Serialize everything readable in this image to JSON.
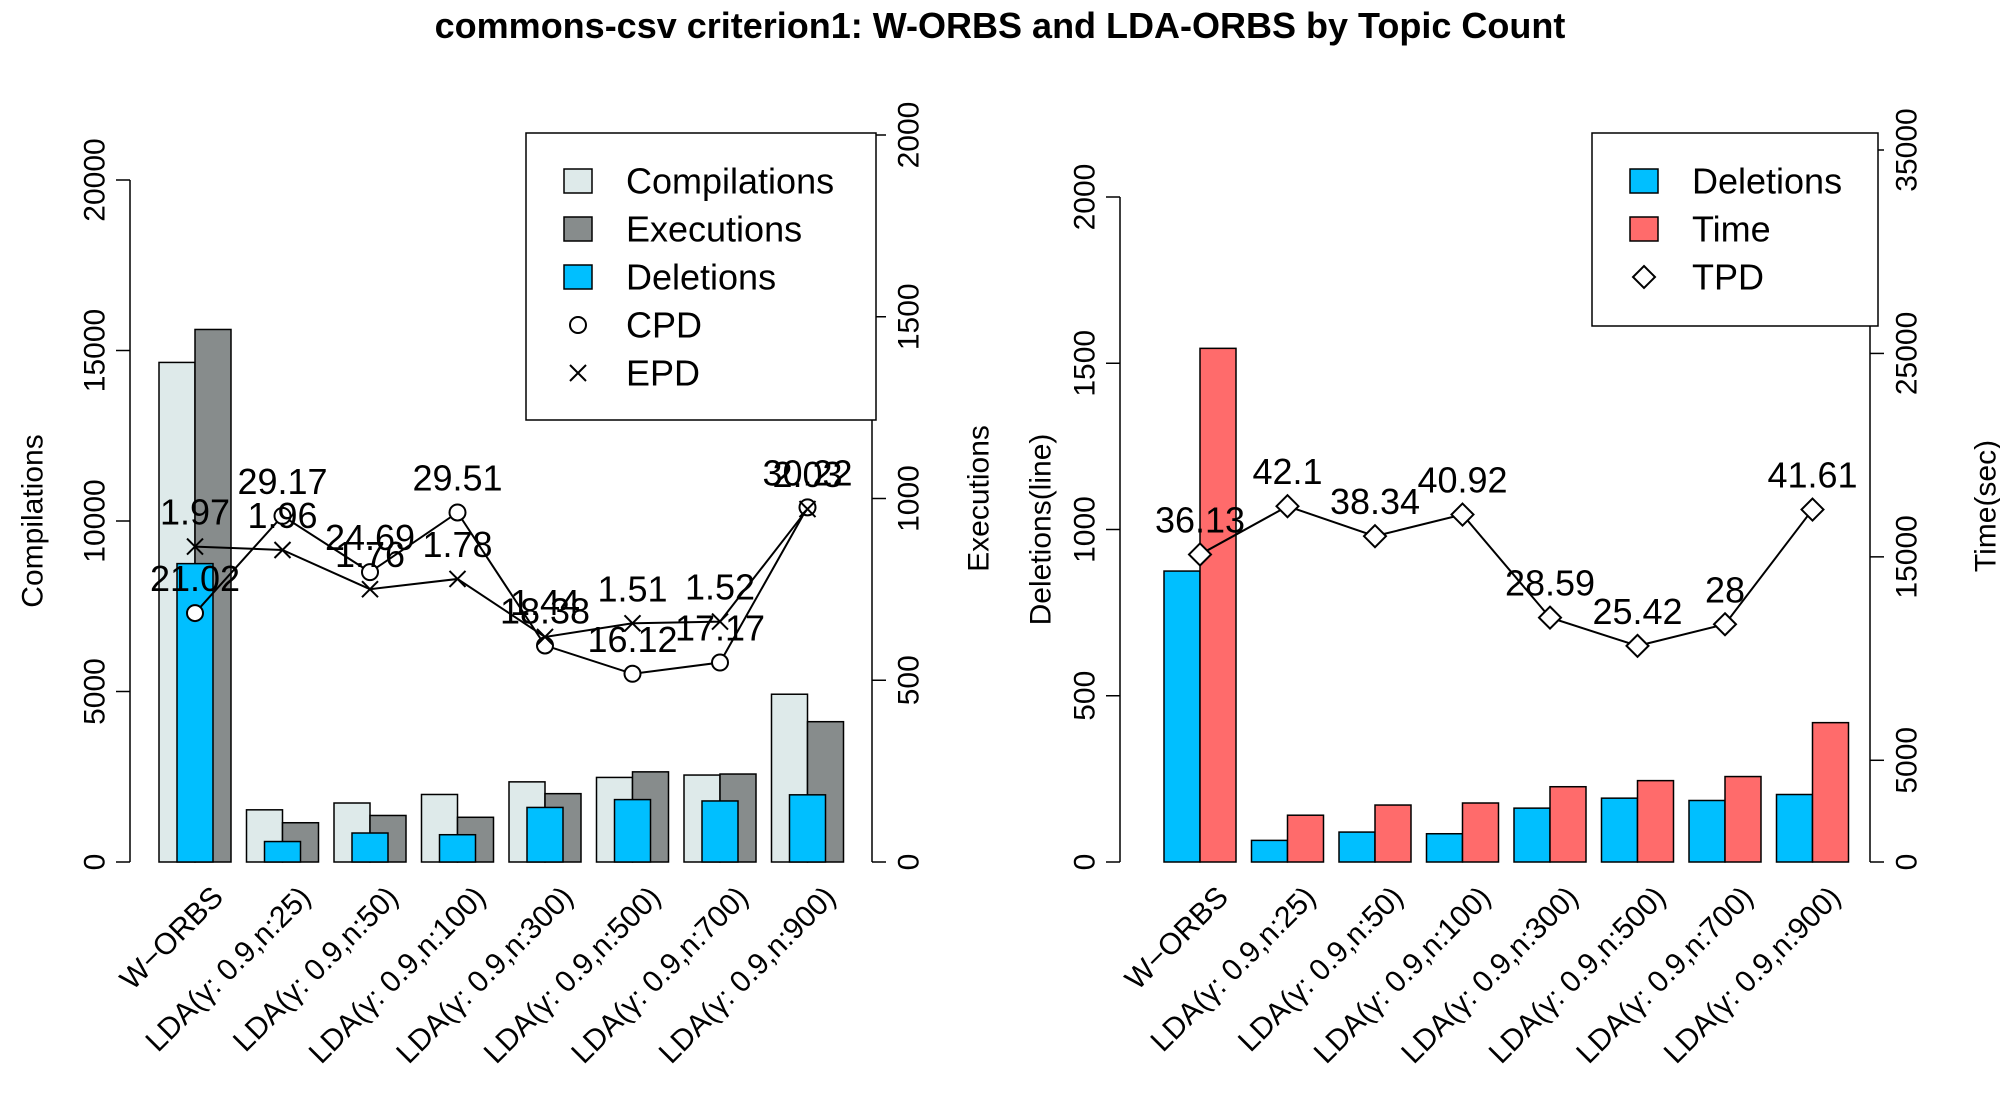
{
  "title": "commons-csv criterion1: W-ORBS and LDA-ORBS by Topic Count",
  "colors": {
    "compilations": "#deeaea",
    "executions": "#878c8c",
    "deletions": "#00bfff",
    "time": "#ff6b6b",
    "stroke": "#000000"
  },
  "chart_data": [
    {
      "type": "bar",
      "panel": "left",
      "categories": [
        "W−ORBS",
        "LDA(γ: 0.9,n:25)",
        "LDA(γ: 0.9,n:50)",
        "LDA(γ: 0.9,n:100)",
        "LDA(γ: 0.9,n:300)",
        "LDA(γ: 0.9,n:500)",
        "LDA(γ: 0.9,n:700)",
        "LDA(γ: 0.9,n:900)"
      ],
      "ylabel": "Compilations",
      "ylim": [
        0,
        20000
      ],
      "yticks": [
        0,
        5000,
        10000,
        15000,
        20000
      ],
      "y2label": "Executions",
      "y2lim": [
        0,
        2000
      ],
      "y2ticks": [
        0,
        500,
        1000,
        1500,
        2000
      ],
      "series": [
        {
          "name": "Compilations",
          "axis": "left",
          "values": [
            14650,
            1530,
            1730,
            1980,
            2350,
            2480,
            2550,
            4920
          ]
        },
        {
          "name": "Executions",
          "axis": "right",
          "values": [
            1465,
            108,
            128,
            123,
            188,
            248,
            242,
            386
          ]
        },
        {
          "name": "Deletions",
          "axis": "left",
          "values": [
            8750,
            600,
            850,
            800,
            1600,
            1830,
            1790,
            1970
          ]
        }
      ],
      "lines": [
        {
          "name": "CPD",
          "axis": "left",
          "marker": "circle",
          "values": [
            7300,
            10150,
            8500,
            10250,
            6350,
            5520,
            5850,
            10400
          ],
          "labels": [
            "21.02",
            "29.17",
            "24.69",
            "29.51",
            "18.38",
            "16.12",
            "17.17",
            "30.22"
          ]
        },
        {
          "name": "EPD",
          "axis": "left",
          "marker": "x",
          "values": [
            9250,
            9150,
            8000,
            8300,
            6600,
            7000,
            7050,
            10350
          ],
          "labels": [
            "1.97",
            "1.96",
            "1.76",
            "1.78",
            "1.44",
            "1.51",
            "1.52",
            "2.03"
          ]
        }
      ],
      "legend": [
        "Compilations",
        "Executions",
        "Deletions",
        "CPD",
        "EPD"
      ],
      "legend_position": "top-right"
    },
    {
      "type": "bar",
      "panel": "right",
      "categories": [
        "W−ORBS",
        "LDA(γ: 0.9,n:25)",
        "LDA(γ: 0.9,n:50)",
        "LDA(γ: 0.9,n:100)",
        "LDA(γ: 0.9,n:300)",
        "LDA(γ: 0.9,n:500)",
        "LDA(γ: 0.9,n:700)",
        "LDA(γ: 0.9,n:900)"
      ],
      "ylabel": "Deletions(line)",
      "ylim": [
        0,
        2000
      ],
      "yticks": [
        0,
        500,
        1000,
        1500,
        2000
      ],
      "y2label": "Time(sec)",
      "y2lim": [
        0,
        35000
      ],
      "y2ticks": [
        0,
        5000,
        15000,
        25000,
        35000
      ],
      "series": [
        {
          "name": "Deletions",
          "axis": "left",
          "values": [
            875,
            65,
            90,
            85,
            162,
            192,
            185,
            203
          ]
        },
        {
          "name": "Time",
          "axis": "right",
          "values": [
            25250,
            2300,
            2800,
            2900,
            3700,
            4000,
            4200,
            6850
          ]
        }
      ],
      "lines": [
        {
          "name": "TPD",
          "axis": "left",
          "marker": "diamond",
          "values": [
            925,
            1070,
            980,
            1045,
            735,
            650,
            715,
            1060
          ],
          "labels": [
            "36.13",
            "42.1",
            "38.34",
            "40.92",
            "28.59",
            "25.42",
            "28",
            "41.61"
          ]
        }
      ],
      "legend": [
        "Deletions",
        "Time",
        "TPD"
      ],
      "legend_position": "top-right"
    }
  ]
}
